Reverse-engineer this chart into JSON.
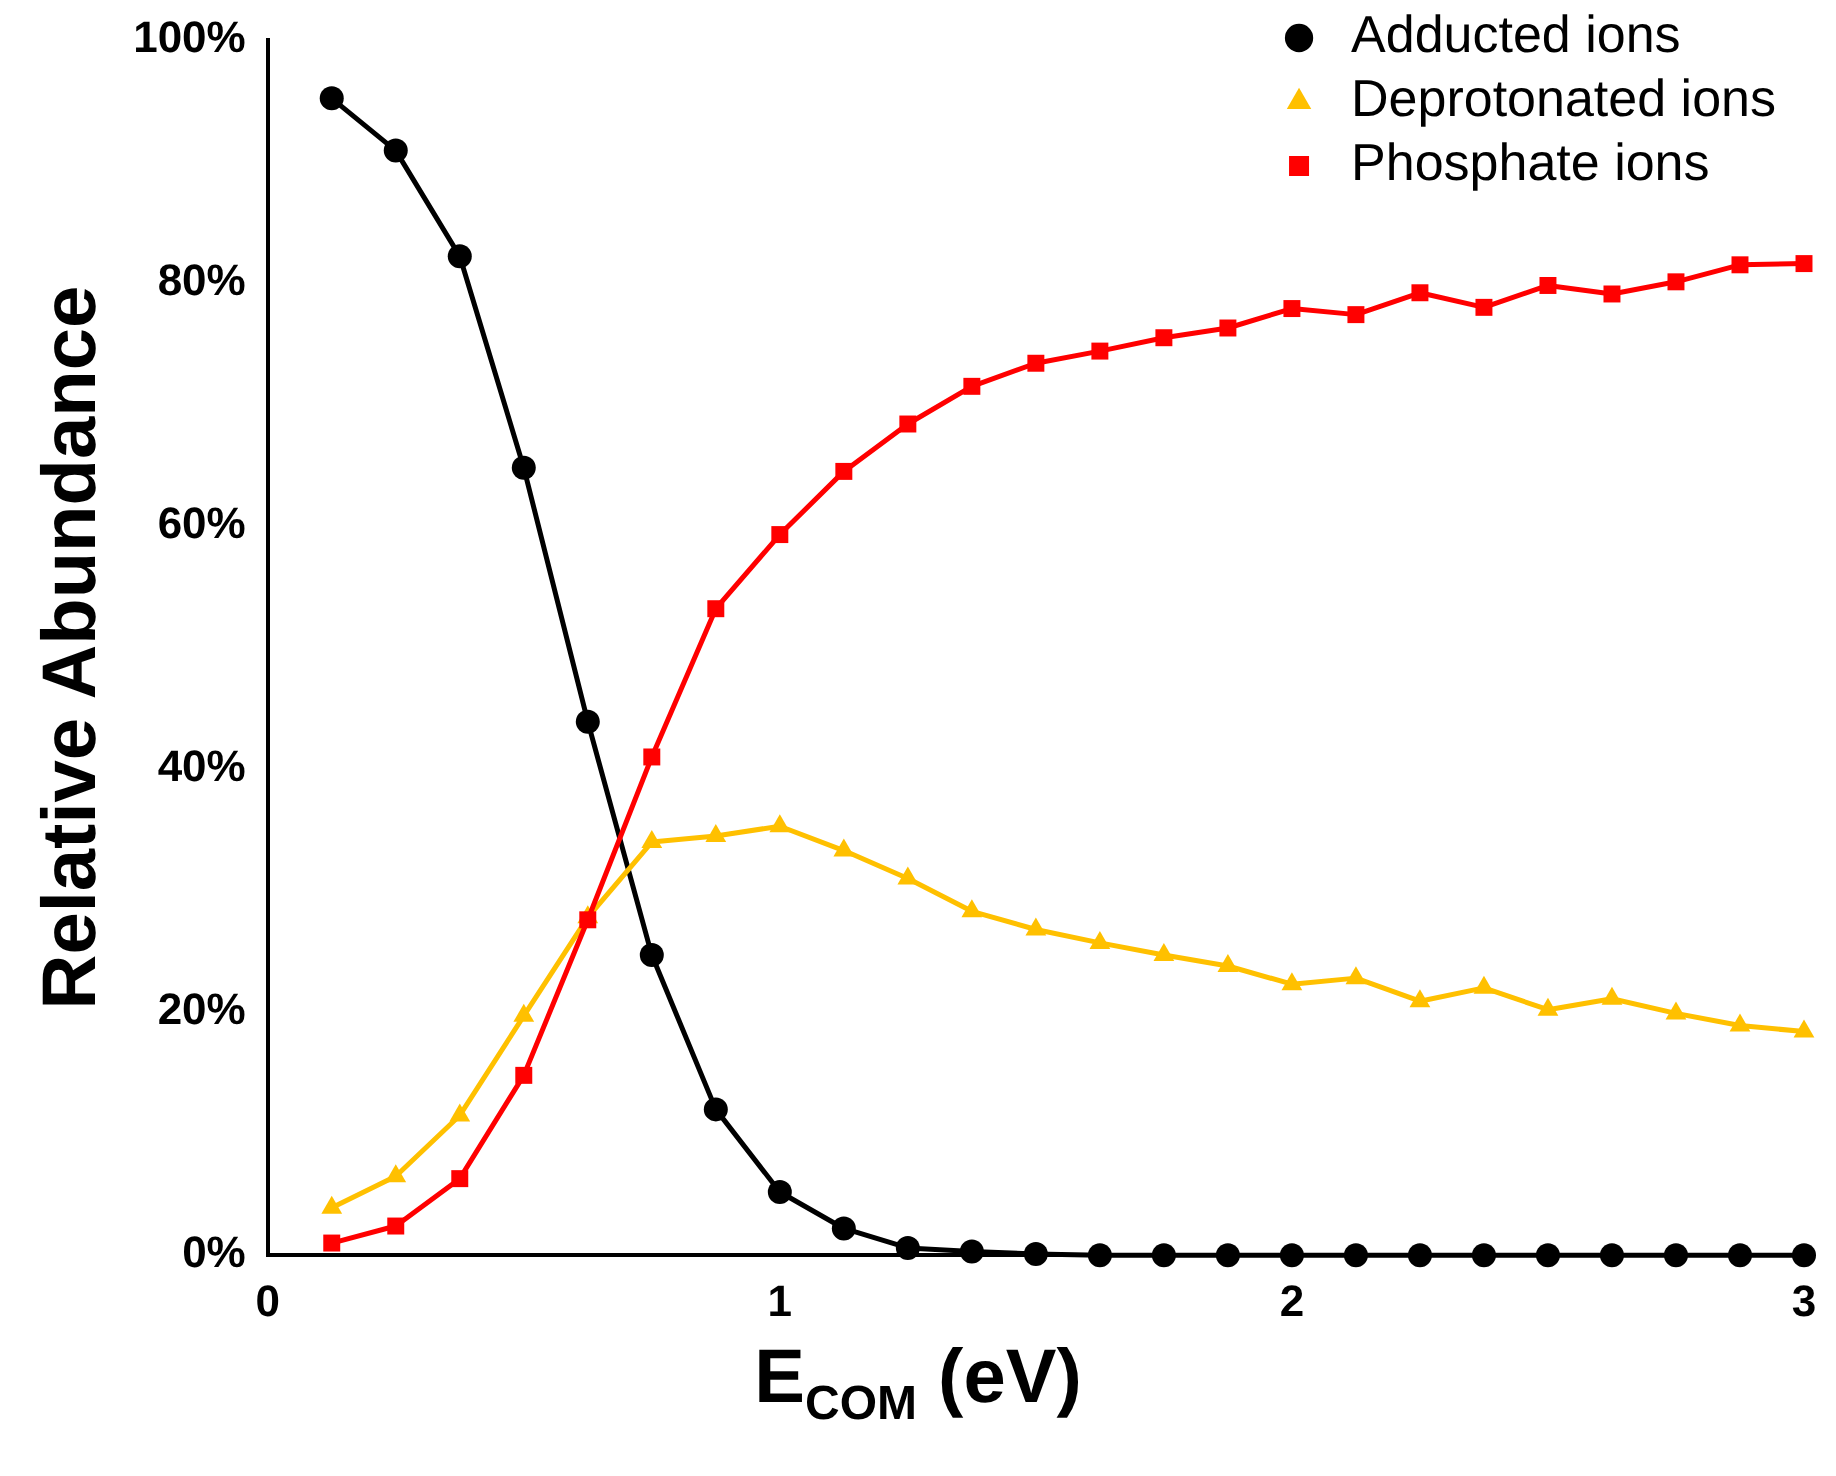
{
  "chart_data": {
    "type": "line",
    "xlabel": "E$_{COM}$ (eV)",
    "ylabel": "Relative Abundance",
    "x": [
      0.125,
      0.25,
      0.375,
      0.5,
      0.625,
      0.75,
      0.875,
      1,
      1.125,
      1.25,
      1.375,
      1.5,
      1.625,
      1.75,
      1.875,
      2,
      2.125,
      2.25,
      2.375,
      2.5,
      2.625,
      2.75,
      2.875,
      3
    ],
    "series": [
      {
        "name": "Adducted ions",
        "color": "#000000",
        "marker": "circle",
        "values": [
          95.2,
          90.9,
          82.2,
          64.8,
          43.9,
          24.7,
          12,
          5.2,
          2.2,
          0.6,
          0.3,
          0.1,
          0,
          0,
          0,
          0,
          0,
          0,
          0,
          0,
          0,
          0,
          0,
          0
        ]
      },
      {
        "name": "Deprotonated ions",
        "color": "#ffc000",
        "marker": "triangle",
        "values": [
          3.9,
          6.5,
          11.5,
          19.7,
          27.8,
          34,
          34.5,
          35.3,
          33.3,
          31,
          28.3,
          26.8,
          25.7,
          24.7,
          23.8,
          22.3,
          22.8,
          20.9,
          22,
          20.2,
          21.1,
          19.9,
          18.9,
          18.4
        ]
      },
      {
        "name": "Phosphate ions",
        "color": "#ff0000",
        "marker": "square",
        "values": [
          1,
          2.4,
          6.3,
          14.8,
          27.6,
          41,
          53.2,
          59.3,
          64.5,
          68.4,
          71.5,
          73.4,
          74.4,
          75.5,
          76.3,
          77.9,
          77.4,
          79.2,
          78,
          79.8,
          79.1,
          80.1,
          81.5,
          81.6
        ]
      }
    ],
    "xlim": [
      0,
      3
    ],
    "xticks": [
      0,
      1,
      2,
      3
    ],
    "ylim": [
      0,
      100
    ],
    "yticks": [
      {
        "value": 0,
        "label": "0%"
      },
      {
        "value": 20,
        "label": "20%"
      },
      {
        "value": 40,
        "label": "40%"
      },
      {
        "value": 60,
        "label": "60%"
      },
      {
        "value": 80,
        "label": "80%"
      },
      {
        "value": 100,
        "label": "100%"
      }
    ],
    "grid": false,
    "legend": "top right",
    "line_style": "solid"
  }
}
